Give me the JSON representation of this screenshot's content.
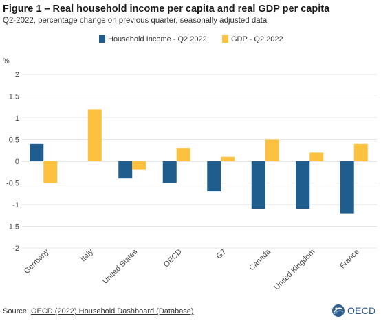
{
  "title": "Figure 1 – Real household income per capita and real GDP per capita",
  "subtitle": "Q2-2022, percentage change on previous quarter, seasonally adjusted data",
  "footer": {
    "prefix": "Source: ",
    "link": "OECD (2022) Household Dashboard (Database)"
  },
  "logo": {
    "text": "OECD",
    "icon": "oecd-globe-icon"
  },
  "colors": {
    "household": "#1f5d8e",
    "gdp": "#fcc13f",
    "grid": "#e4e4e4"
  },
  "chart_data": {
    "type": "bar",
    "title": "Figure 1 – Real household income per capita and real GDP per capita",
    "subtitle": "Q2-2022, percentage change on previous quarter, seasonally adjusted data",
    "ylabel": "%",
    "xlabel": "",
    "ylim": [
      -2,
      2
    ],
    "yticks": [
      -2,
      -1.5,
      -1,
      -0.5,
      0,
      0.5,
      1,
      1.5,
      2
    ],
    "ytick_labels": [
      "-2",
      "-1.5",
      "-1",
      "-0.5",
      "0",
      "0.5",
      "1",
      "1.5",
      "2"
    ],
    "grid": true,
    "legend": "top-right",
    "categories": [
      "Germany",
      "Italy",
      "United States",
      "OECD",
      "G7",
      "Canada",
      "United Kingdom",
      "France"
    ],
    "series": [
      {
        "name": "Household Income - Q2 2022",
        "color": "#1f5d8e",
        "values": [
          0.4,
          null,
          -0.4,
          -0.5,
          -0.7,
          -1.1,
          -1.1,
          -1.2
        ]
      },
      {
        "name": "GDP - Q2 2022",
        "color": "#fcc13f",
        "values": [
          -0.5,
          1.2,
          -0.2,
          0.3,
          0.1,
          0.5,
          0.2,
          0.4
        ]
      }
    ]
  }
}
